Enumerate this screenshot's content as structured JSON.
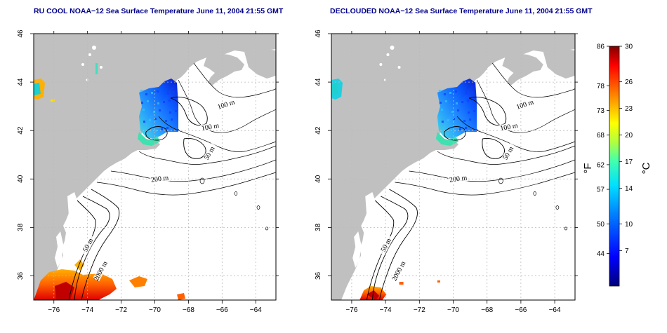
{
  "maps": [
    {
      "title": "RU COOL NOAA−12 Sea Surface Temperature June 11, 2004 21:55 GMT",
      "contour_labels": [
        "100 m",
        "100 m",
        "50 m",
        "200 m",
        "50 m",
        "2000 m"
      ]
    },
    {
      "title": "DECLOUDED NOAA−12 Sea Surface Temperature June 11, 2004 21:55 GMT",
      "contour_labels": [
        "100 m",
        "100 m",
        "50 m",
        "200 m",
        "50 m",
        "2000 m"
      ]
    }
  ],
  "axes": {
    "lon_ticks": [
      "−76",
      "−74",
      "−72",
      "−70",
      "−68",
      "−66",
      "−64"
    ],
    "lat_ticks": [
      "36",
      "38",
      "40",
      "42",
      "44",
      "46"
    ],
    "lon_range": [
      -77.2,
      -62.8
    ],
    "lat_range": [
      35.0,
      46.0
    ]
  },
  "colorbar": {
    "fahrenheit_label": "°F",
    "celsius_label": "°C",
    "fahrenheit_ticks": [
      "86",
      "78",
      "73",
      "68",
      "62",
      "57",
      "50",
      "44"
    ],
    "celsius_ticks": [
      "30",
      "26",
      "23",
      "20",
      "17",
      "14",
      "10",
      "7"
    ],
    "celsius_range": [
      3,
      30
    ]
  },
  "colors": {
    "land": "#c0c0c0",
    "ocean": "#ffffff",
    "contour": "#000000",
    "grid": "#bbbbbb"
  }
}
